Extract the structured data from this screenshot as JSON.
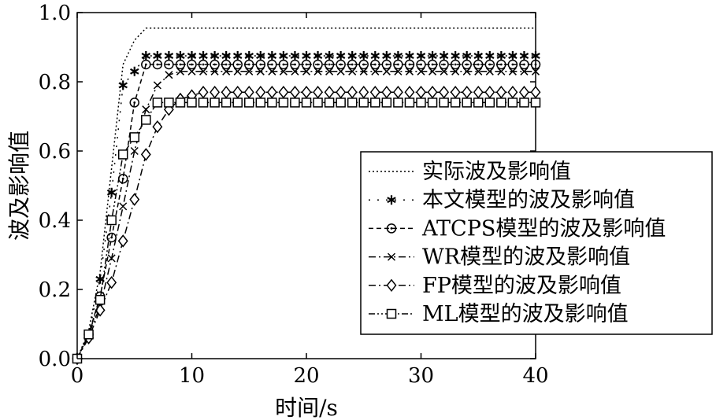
{
  "chart_data": {
    "type": "line",
    "title": "",
    "xlabel": "时间/s",
    "ylabel": "波及影响值",
    "xlim": [
      0,
      40
    ],
    "ylim": [
      0,
      1.0
    ],
    "xticks": [
      0,
      10,
      20,
      30,
      40
    ],
    "xtick_labels": [
      "0",
      "10",
      "20",
      "30",
      "40"
    ],
    "yticks": [
      0,
      0.2,
      0.4,
      0.6,
      0.8,
      1.0
    ],
    "ytick_labels": [
      "0.0",
      "0.2",
      "0.4",
      "0.6",
      "0.8",
      "1.0"
    ],
    "grid": false,
    "legend_position": "center-right",
    "x": [
      0,
      1,
      2,
      3,
      4,
      5,
      6,
      7,
      8,
      9,
      10,
      11,
      12,
      13,
      14,
      15,
      16,
      17,
      18,
      19,
      20,
      21,
      22,
      23,
      24,
      25,
      26,
      27,
      28,
      29,
      30,
      31,
      32,
      33,
      34,
      35,
      36,
      37,
      38,
      39,
      40
    ],
    "series": [
      {
        "name": "实际波及影响值",
        "style": "dotted",
        "marker": "none",
        "color": "#000000",
        "values": [
          0,
          0.08,
          0.25,
          0.55,
          0.85,
          0.92,
          0.955,
          0.955,
          0.955,
          0.955,
          0.955,
          0.955,
          0.955,
          0.955,
          0.955,
          0.955,
          0.955,
          0.955,
          0.955,
          0.955,
          0.955,
          0.955,
          0.955,
          0.955,
          0.955,
          0.955,
          0.955,
          0.955,
          0.955,
          0.955,
          0.955,
          0.955,
          0.955,
          0.955,
          0.955,
          0.955,
          0.955,
          0.955,
          0.955,
          0.955,
          0.955
        ]
      },
      {
        "name": "本文模型的波及影响值",
        "style": "dotted-wide",
        "marker": "asterisk",
        "color": "#000000",
        "values": [
          0,
          0.07,
          0.23,
          0.48,
          0.79,
          0.83,
          0.875,
          0.875,
          0.875,
          0.875,
          0.875,
          0.875,
          0.875,
          0.875,
          0.875,
          0.875,
          0.875,
          0.875,
          0.875,
          0.875,
          0.875,
          0.875,
          0.875,
          0.875,
          0.875,
          0.875,
          0.875,
          0.875,
          0.875,
          0.875,
          0.875,
          0.875,
          0.875,
          0.875,
          0.875,
          0.875,
          0.875,
          0.875,
          0.875,
          0.875,
          0.875
        ]
      },
      {
        "name": "ATCPS模型的波及影响值",
        "style": "dashed",
        "marker": "circle",
        "color": "#000000",
        "values": [
          0,
          0.07,
          0.18,
          0.35,
          0.52,
          0.74,
          0.85,
          0.85,
          0.85,
          0.85,
          0.85,
          0.85,
          0.85,
          0.85,
          0.85,
          0.85,
          0.85,
          0.85,
          0.85,
          0.85,
          0.85,
          0.85,
          0.85,
          0.85,
          0.85,
          0.85,
          0.85,
          0.85,
          0.85,
          0.85,
          0.85,
          0.85,
          0.85,
          0.85,
          0.85,
          0.85,
          0.85,
          0.85,
          0.85,
          0.85,
          0.85
        ]
      },
      {
        "name": "WR模型的波及影响值",
        "style": "dash-dot",
        "marker": "x",
        "color": "#000000",
        "values": [
          0,
          0.07,
          0.15,
          0.29,
          0.44,
          0.6,
          0.72,
          0.79,
          0.82,
          0.83,
          0.83,
          0.83,
          0.83,
          0.83,
          0.83,
          0.83,
          0.83,
          0.83,
          0.83,
          0.83,
          0.83,
          0.83,
          0.83,
          0.83,
          0.83,
          0.83,
          0.83,
          0.83,
          0.83,
          0.83,
          0.83,
          0.83,
          0.83,
          0.83,
          0.83,
          0.83,
          0.83,
          0.83,
          0.83,
          0.83,
          0.83
        ]
      },
      {
        "name": "FP模型的波及影响值",
        "style": "dash-dot",
        "marker": "diamond",
        "color": "#000000",
        "values": [
          0,
          0.06,
          0.14,
          0.22,
          0.34,
          0.46,
          0.59,
          0.67,
          0.72,
          0.75,
          0.76,
          0.77,
          0.77,
          0.77,
          0.77,
          0.77,
          0.77,
          0.77,
          0.77,
          0.77,
          0.77,
          0.77,
          0.77,
          0.77,
          0.77,
          0.77,
          0.77,
          0.77,
          0.77,
          0.77,
          0.77,
          0.77,
          0.77,
          0.77,
          0.77,
          0.77,
          0.77,
          0.77,
          0.77,
          0.77,
          0.77
        ]
      },
      {
        "name": "ML模型的波及影响值",
        "style": "dash-dot-dot",
        "marker": "square",
        "color": "#000000",
        "values": [
          0,
          0.07,
          0.17,
          0.4,
          0.59,
          0.64,
          0.69,
          0.74,
          0.74,
          0.74,
          0.74,
          0.74,
          0.74,
          0.74,
          0.74,
          0.74,
          0.74,
          0.74,
          0.74,
          0.74,
          0.74,
          0.74,
          0.74,
          0.74,
          0.74,
          0.74,
          0.74,
          0.74,
          0.74,
          0.74,
          0.74,
          0.74,
          0.74,
          0.74,
          0.74,
          0.74,
          0.74,
          0.74,
          0.74,
          0.74,
          0.74
        ]
      }
    ]
  }
}
